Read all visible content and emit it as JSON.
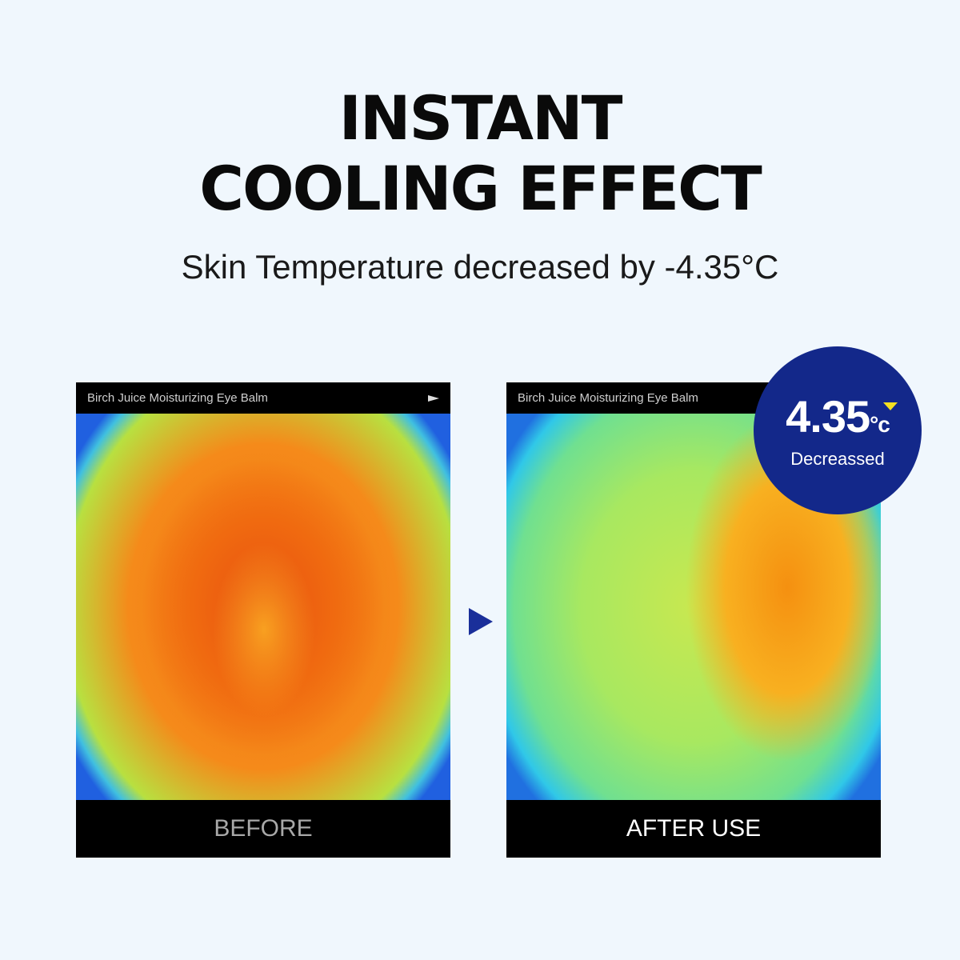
{
  "headline": {
    "line1": "INSTANT",
    "line2": "COOLING EFFECT"
  },
  "subtitle": "Skin Temperature decreased by -4.35°C",
  "panels": [
    {
      "header": "Birch Juice Moisturizing Eye Balm",
      "label": "BEFORE"
    },
    {
      "header": "Birch Juice Moisturizing Eye Balm",
      "label": "AFTER USE"
    }
  ],
  "badge": {
    "value": "4.35",
    "unit": "°c",
    "label": "Decreassed",
    "color": "#13288a",
    "indicator": "down-triangle-icon"
  },
  "colors": {
    "background": "#f0f7fd",
    "arrow": "#1a2f9a",
    "indicator": "#f5e020"
  }
}
